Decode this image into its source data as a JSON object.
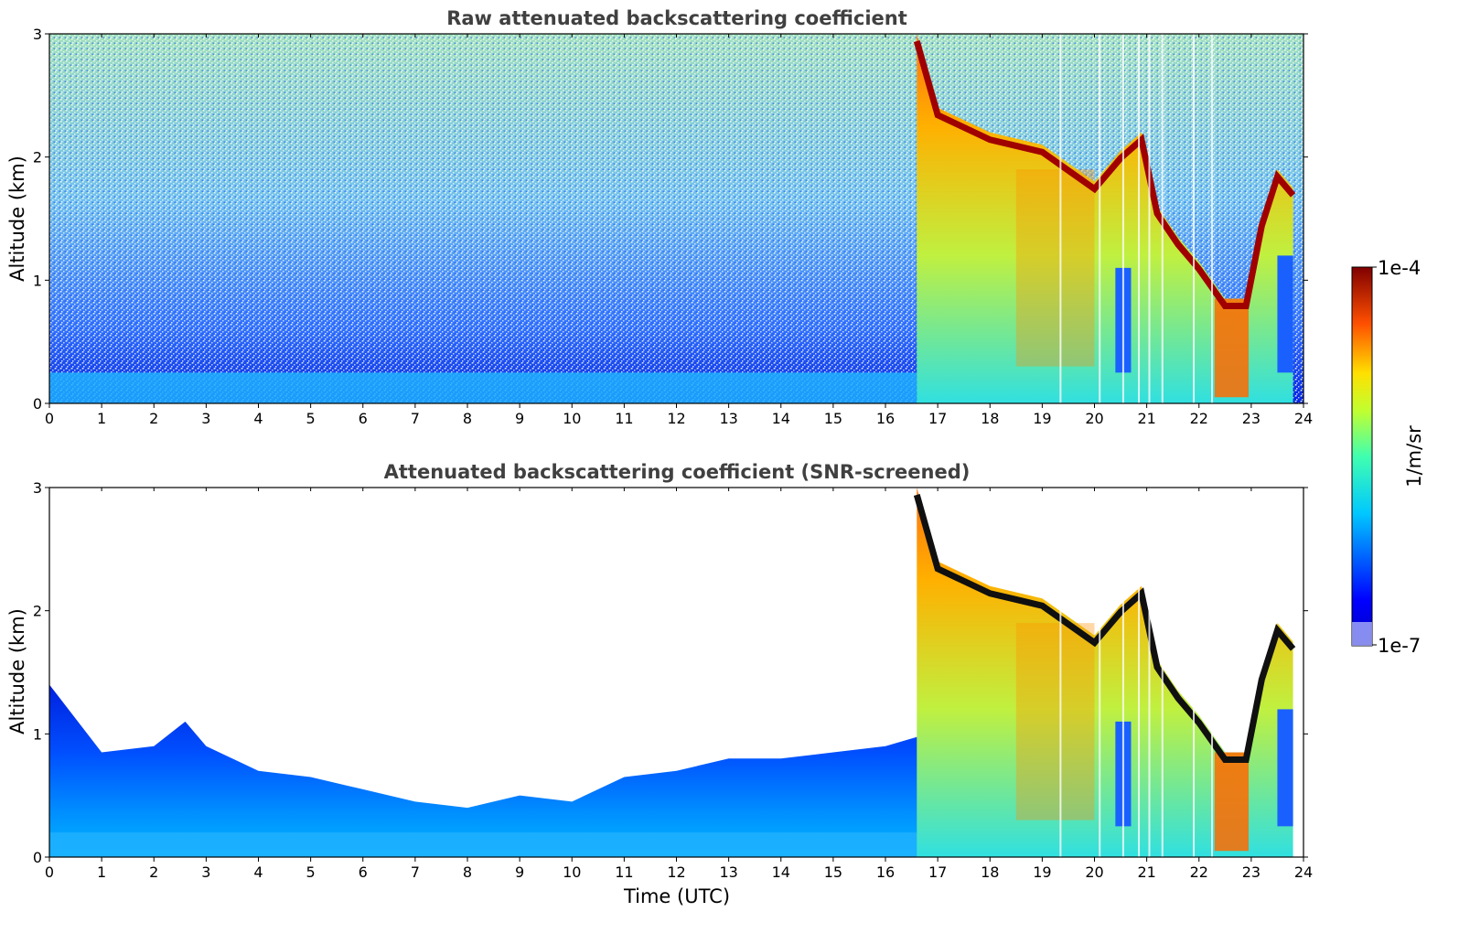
{
  "chart_data": [
    {
      "type": "heatmap",
      "title": "Raw attenuated backscattering coefficient",
      "xlabel": "",
      "ylabel": "Altitude (km)",
      "xlim": [
        0,
        24
      ],
      "ylim": [
        0,
        3
      ],
      "xticks": [
        "0",
        "1",
        "2",
        "3",
        "4",
        "5",
        "6",
        "7",
        "8",
        "9",
        "10",
        "11",
        "12",
        "13",
        "14",
        "15",
        "16",
        "17",
        "18",
        "19",
        "20",
        "21",
        "22",
        "23",
        "24"
      ],
      "yticks": [
        "0",
        "1",
        "2",
        "3"
      ],
      "screened": false,
      "cloud_top_km": [
        {
          "t": 16.6,
          "z": 3.0
        },
        {
          "t": 17.0,
          "z": 2.4
        },
        {
          "t": 17.5,
          "z": 2.3
        },
        {
          "t": 18.0,
          "z": 2.2
        },
        {
          "t": 18.5,
          "z": 2.15
        },
        {
          "t": 19.0,
          "z": 2.1
        },
        {
          "t": 19.5,
          "z": 1.95
        },
        {
          "t": 20.0,
          "z": 1.8
        },
        {
          "t": 20.5,
          "z": 2.05
        },
        {
          "t": 20.9,
          "z": 2.2
        },
        {
          "t": 21.2,
          "z": 1.6
        },
        {
          "t": 21.6,
          "z": 1.35
        },
        {
          "t": 22.0,
          "z": 1.15
        },
        {
          "t": 22.5,
          "z": 0.85
        },
        {
          "t": 22.9,
          "z": 0.85
        },
        {
          "t": 23.2,
          "z": 1.5
        },
        {
          "t": 23.5,
          "z": 1.9
        },
        {
          "t": 23.8,
          "z": 1.75
        }
      ]
    },
    {
      "type": "heatmap",
      "title": "Attenuated backscattering coefficient (SNR-screened)",
      "xlabel": "Time (UTC)",
      "ylabel": "Altitude (km)",
      "xlim": [
        0,
        24
      ],
      "ylim": [
        0,
        3
      ],
      "xticks": [
        "0",
        "1",
        "2",
        "3",
        "4",
        "5",
        "6",
        "7",
        "8",
        "9",
        "10",
        "11",
        "12",
        "13",
        "14",
        "15",
        "16",
        "17",
        "18",
        "19",
        "20",
        "21",
        "22",
        "23",
        "24"
      ],
      "yticks": [
        "0",
        "1",
        "2",
        "3"
      ],
      "screened": true,
      "boundary_layer_top_km": [
        {
          "t": 0.0,
          "z": 1.4
        },
        {
          "t": 1.0,
          "z": 0.85
        },
        {
          "t": 2.0,
          "z": 0.9
        },
        {
          "t": 2.6,
          "z": 1.1
        },
        {
          "t": 3.0,
          "z": 0.9
        },
        {
          "t": 4.0,
          "z": 0.7
        },
        {
          "t": 5.0,
          "z": 0.65
        },
        {
          "t": 6.0,
          "z": 0.55
        },
        {
          "t": 7.0,
          "z": 0.45
        },
        {
          "t": 8.0,
          "z": 0.4
        },
        {
          "t": 9.0,
          "z": 0.5
        },
        {
          "t": 10.0,
          "z": 0.45
        },
        {
          "t": 11.0,
          "z": 0.65
        },
        {
          "t": 12.0,
          "z": 0.7
        },
        {
          "t": 13.0,
          "z": 0.8
        },
        {
          "t": 14.0,
          "z": 0.8
        },
        {
          "t": 15.0,
          "z": 0.85
        },
        {
          "t": 16.0,
          "z": 0.9
        },
        {
          "t": 16.8,
          "z": 1.0
        }
      ]
    }
  ],
  "colorbar": {
    "label": "1/m/sr",
    "min_label": "1e-7",
    "max_label": "1e-4",
    "scale": "log",
    "range": [
      1e-07,
      0.0001
    ],
    "colormap": "jet"
  }
}
